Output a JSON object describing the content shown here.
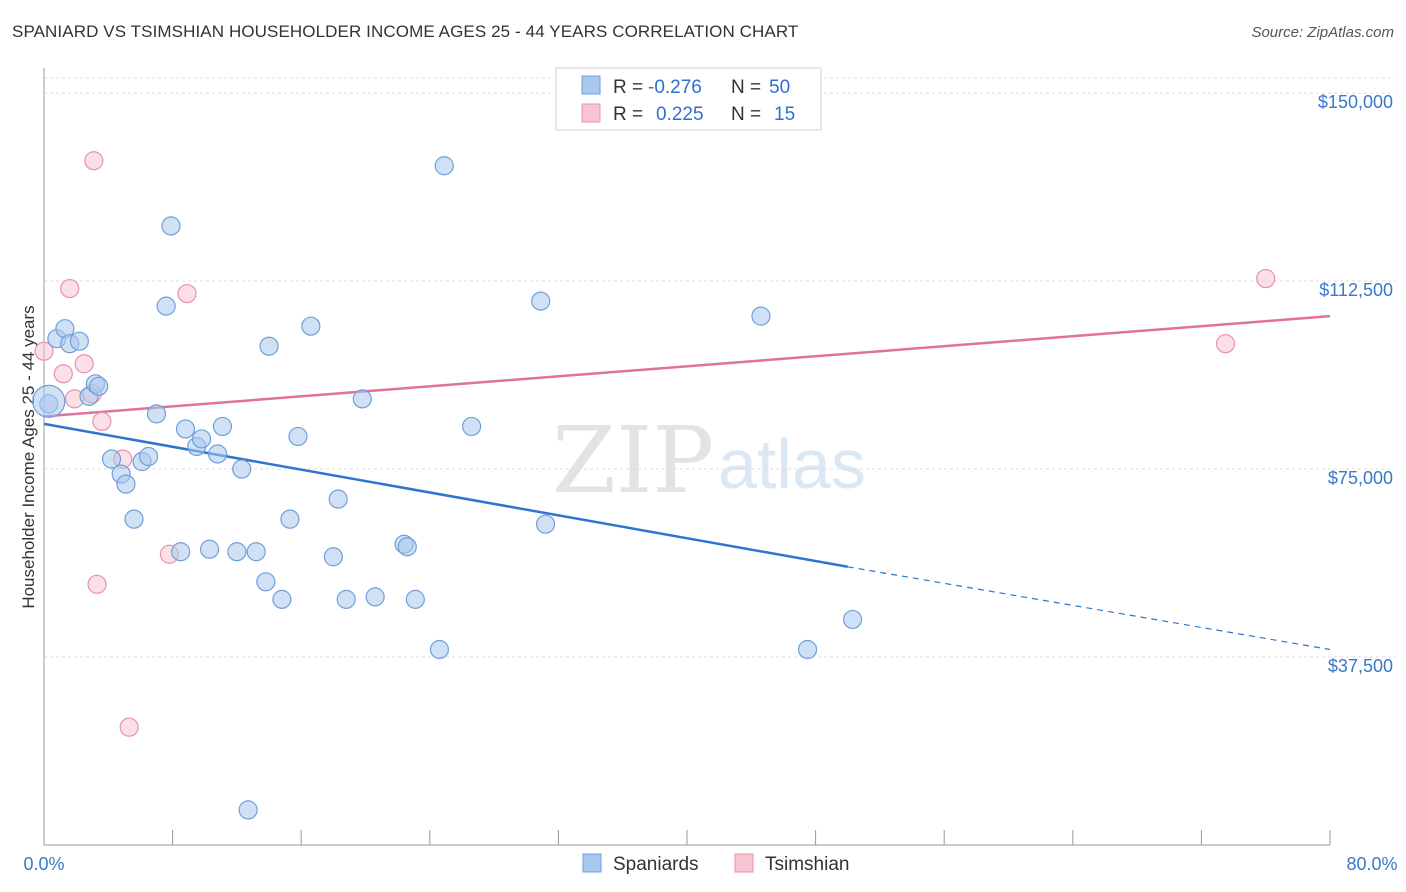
{
  "title": "SPANIARD VS TSIMSHIAN HOUSEHOLDER INCOME AGES 25 - 44 YEARS CORRELATION CHART",
  "source": "Source: ZipAtlas.com",
  "watermark": {
    "zip": "ZIP",
    "atlas": "atlas"
  },
  "legend_top": {
    "r_label": "R =",
    "n_label": "N =",
    "rows": [
      {
        "r": "-0.276",
        "n": "50"
      },
      {
        "r": "0.225",
        "n": "15"
      }
    ]
  },
  "chart_data": {
    "type": "scatter",
    "title": "SPANIARD VS TSIMSHIAN HOUSEHOLDER INCOME AGES 25 - 44 YEARS CORRELATION CHART",
    "xlabel": "",
    "ylabel": "Householder Income Ages 25 - 44 years",
    "xlim": [
      0,
      80
    ],
    "ylim": [
      0,
      155000
    ],
    "x_tick_labels": [
      "0.0%",
      "80.0%"
    ],
    "y_ticks": [
      37500,
      75000,
      112500,
      150000
    ],
    "y_tick_labels": [
      "$37,500",
      "$75,000",
      "$112,500",
      "$150,000"
    ],
    "grid": true,
    "legend_placement": "top-center and bottom",
    "series": [
      {
        "name": "Spaniards",
        "color": "#aac8ef",
        "stroke": "#6f9fd8",
        "line_color": "#2e74d0",
        "trend": {
          "x0": 0,
          "y0": 84000,
          "x1": 50,
          "y1": 55500,
          "dashed_to_x": 80,
          "dashed_to_y": 39000
        },
        "points": [
          [
            0.3,
            88000
          ],
          [
            0.8,
            101000
          ],
          [
            1.3,
            103000
          ],
          [
            1.6,
            100000
          ],
          [
            2.2,
            100500
          ],
          [
            2.8,
            89500
          ],
          [
            3.2,
            92000
          ],
          [
            3.4,
            91500
          ],
          [
            4.2,
            77000
          ],
          [
            4.8,
            74000
          ],
          [
            5.1,
            72000
          ],
          [
            5.6,
            65000
          ],
          [
            6.1,
            76500
          ],
          [
            6.5,
            77500
          ],
          [
            7.0,
            86000
          ],
          [
            7.6,
            107500
          ],
          [
            7.9,
            123500
          ],
          [
            8.5,
            58500
          ],
          [
            8.8,
            83000
          ],
          [
            9.5,
            79500
          ],
          [
            9.8,
            81000
          ],
          [
            10.3,
            59000
          ],
          [
            10.8,
            78000
          ],
          [
            11.1,
            83500
          ],
          [
            12.0,
            58500
          ],
          [
            12.3,
            75000
          ],
          [
            13.2,
            58500
          ],
          [
            13.8,
            52500
          ],
          [
            14.0,
            99500
          ],
          [
            14.8,
            49000
          ],
          [
            15.3,
            65000
          ],
          [
            15.8,
            81500
          ],
          [
            16.6,
            103500
          ],
          [
            18.0,
            57500
          ],
          [
            18.3,
            69000
          ],
          [
            18.8,
            49000
          ],
          [
            19.8,
            89000
          ],
          [
            20.6,
            49500
          ],
          [
            22.4,
            60000
          ],
          [
            22.6,
            59500
          ],
          [
            23.1,
            49000
          ],
          [
            24.6,
            39000
          ],
          [
            24.9,
            135500
          ],
          [
            26.6,
            83500
          ],
          [
            30.9,
            108500
          ],
          [
            31.2,
            64000
          ],
          [
            44.6,
            105500
          ],
          [
            47.5,
            39000
          ],
          [
            50.3,
            45000
          ],
          [
            12.7,
            7000
          ]
        ]
      },
      {
        "name": "Tsimshian",
        "color": "#f7c4d2",
        "stroke": "#e892ab",
        "line_color": "#e0719a",
        "trend": {
          "x0": 0,
          "y0": 85500,
          "x1": 80,
          "y1": 105500
        },
        "points": [
          [
            0.0,
            98500
          ],
          [
            1.2,
            94000
          ],
          [
            1.6,
            111000
          ],
          [
            1.9,
            89000
          ],
          [
            2.5,
            96000
          ],
          [
            3.0,
            90000
          ],
          [
            3.1,
            136500
          ],
          [
            3.3,
            52000
          ],
          [
            3.6,
            84500
          ],
          [
            4.9,
            77000
          ],
          [
            5.3,
            23500
          ],
          [
            7.8,
            58000
          ],
          [
            8.9,
            110000
          ],
          [
            73.5,
            100000
          ],
          [
            76.0,
            113000
          ]
        ]
      }
    ]
  }
}
